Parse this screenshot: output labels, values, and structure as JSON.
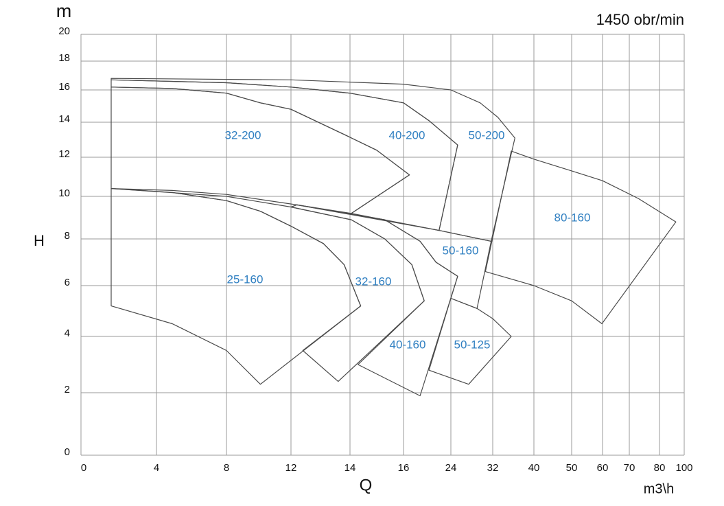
{
  "chart_data": {
    "type": "pump-regions",
    "title": "1450 obr/min",
    "x_label": "Q",
    "x_unit": "m3\\h",
    "y_label": "H",
    "y_unit": "m",
    "xlim": [
      0,
      100
    ],
    "ylim": [
      0,
      20
    ],
    "xticks": [
      0,
      4,
      8,
      12,
      14,
      16,
      24,
      32,
      40,
      50,
      60,
      70,
      80,
      100
    ],
    "yticks": [
      0,
      2,
      4,
      6,
      8,
      10,
      12,
      14,
      16,
      18,
      20
    ],
    "grid": true,
    "line_color": "#4a4a4a",
    "label_color": "#2f7fc1",
    "series": [
      {
        "name": "32-200",
        "x": [
          1.6,
          4.9,
          8,
          10.1,
          12,
          13.8,
          15,
          17,
          14.05,
          12.2,
          8,
          4.9,
          1.6
        ],
        "y": [
          16.2,
          16.1,
          15.8,
          15.2,
          14.8,
          13.3,
          12.4,
          11.1,
          9.2,
          9.6,
          10.1,
          10.3,
          10.4
        ]
      },
      {
        "name": "40-200",
        "x": [
          1.6,
          8,
          12,
          14,
          16,
          20.3,
          25.3,
          22,
          14.05,
          17,
          15,
          13.8,
          12,
          10.1,
          8,
          4.9,
          1.6
        ],
        "y": [
          16.7,
          16.5,
          16.2,
          15.8,
          15.2,
          14.1,
          12.7,
          8.4,
          9.2,
          11.1,
          12.4,
          13.3,
          14.8,
          15.2,
          15.8,
          16.1,
          16.2
        ]
      },
      {
        "name": "50-200",
        "x": [
          1.6,
          12,
          16,
          24,
          29.6,
          33,
          36.3,
          31.7,
          22,
          25.3,
          20.3,
          16,
          14,
          12,
          8,
          1.6
        ],
        "y": [
          16.8,
          16.7,
          16.4,
          16.0,
          15.2,
          14.3,
          13.1,
          7.9,
          8.4,
          12.7,
          14.1,
          15.2,
          15.8,
          16.2,
          16.5,
          16.7
        ]
      },
      {
        "name": "80-160",
        "x": [
          35.6,
          40,
          50,
          60,
          73,
          93.3,
          59.8,
          50,
          40,
          30.6
        ],
        "y": [
          12.35,
          11.9,
          11.3,
          10.8,
          9.9,
          8.8,
          4.5,
          5.4,
          6.0,
          6.6
        ]
      },
      {
        "name": "50-160",
        "x": [
          12.2,
          22,
          31.7,
          29,
          24,
          25.3,
          21.5,
          18.8,
          15.3
        ],
        "y": [
          9.6,
          8.4,
          7.9,
          5.1,
          5.5,
          6.4,
          7.0,
          7.9,
          8.9
        ]
      },
      {
        "name": "25-160",
        "x": [
          1.6,
          4.9,
          8,
          10.1,
          12,
          13.1,
          13.8,
          14.4,
          10.1,
          8,
          4.9,
          1.6
        ],
        "y": [
          10.4,
          10.2,
          9.8,
          9.3,
          8.6,
          7.8,
          6.9,
          5.2,
          2.3,
          3.5,
          4.5,
          5.2
        ]
      },
      {
        "name": "32-160",
        "x": [
          1.6,
          8,
          12,
          14.05,
          15.3,
          17.4,
          19.5,
          13.6,
          12.4,
          14.4,
          13.8,
          13.1,
          12,
          10.1,
          8,
          4.9
        ],
        "y": [
          10.4,
          10.0,
          9.5,
          8.9,
          8.0,
          6.9,
          5.4,
          2.4,
          3.5,
          5.2,
          6.9,
          7.8,
          8.6,
          9.3,
          9.8,
          10.2
        ]
      },
      {
        "name": "40-160",
        "x": [
          12.2,
          15.3,
          18.8,
          21.5,
          25.3,
          18.8,
          14.3,
          19.5,
          17.4,
          15.3,
          14.05,
          12
        ],
        "y": [
          9.6,
          8.9,
          7.9,
          7.0,
          6.4,
          1.9,
          3.0,
          5.4,
          6.9,
          8.0,
          8.9,
          9.5
        ]
      },
      {
        "name": "50-125",
        "x": [
          24,
          29,
          32,
          35.6,
          27.4,
          20.3
        ],
        "y": [
          5.5,
          5.1,
          4.7,
          4.0,
          2.3,
          2.8
        ]
      }
    ]
  }
}
